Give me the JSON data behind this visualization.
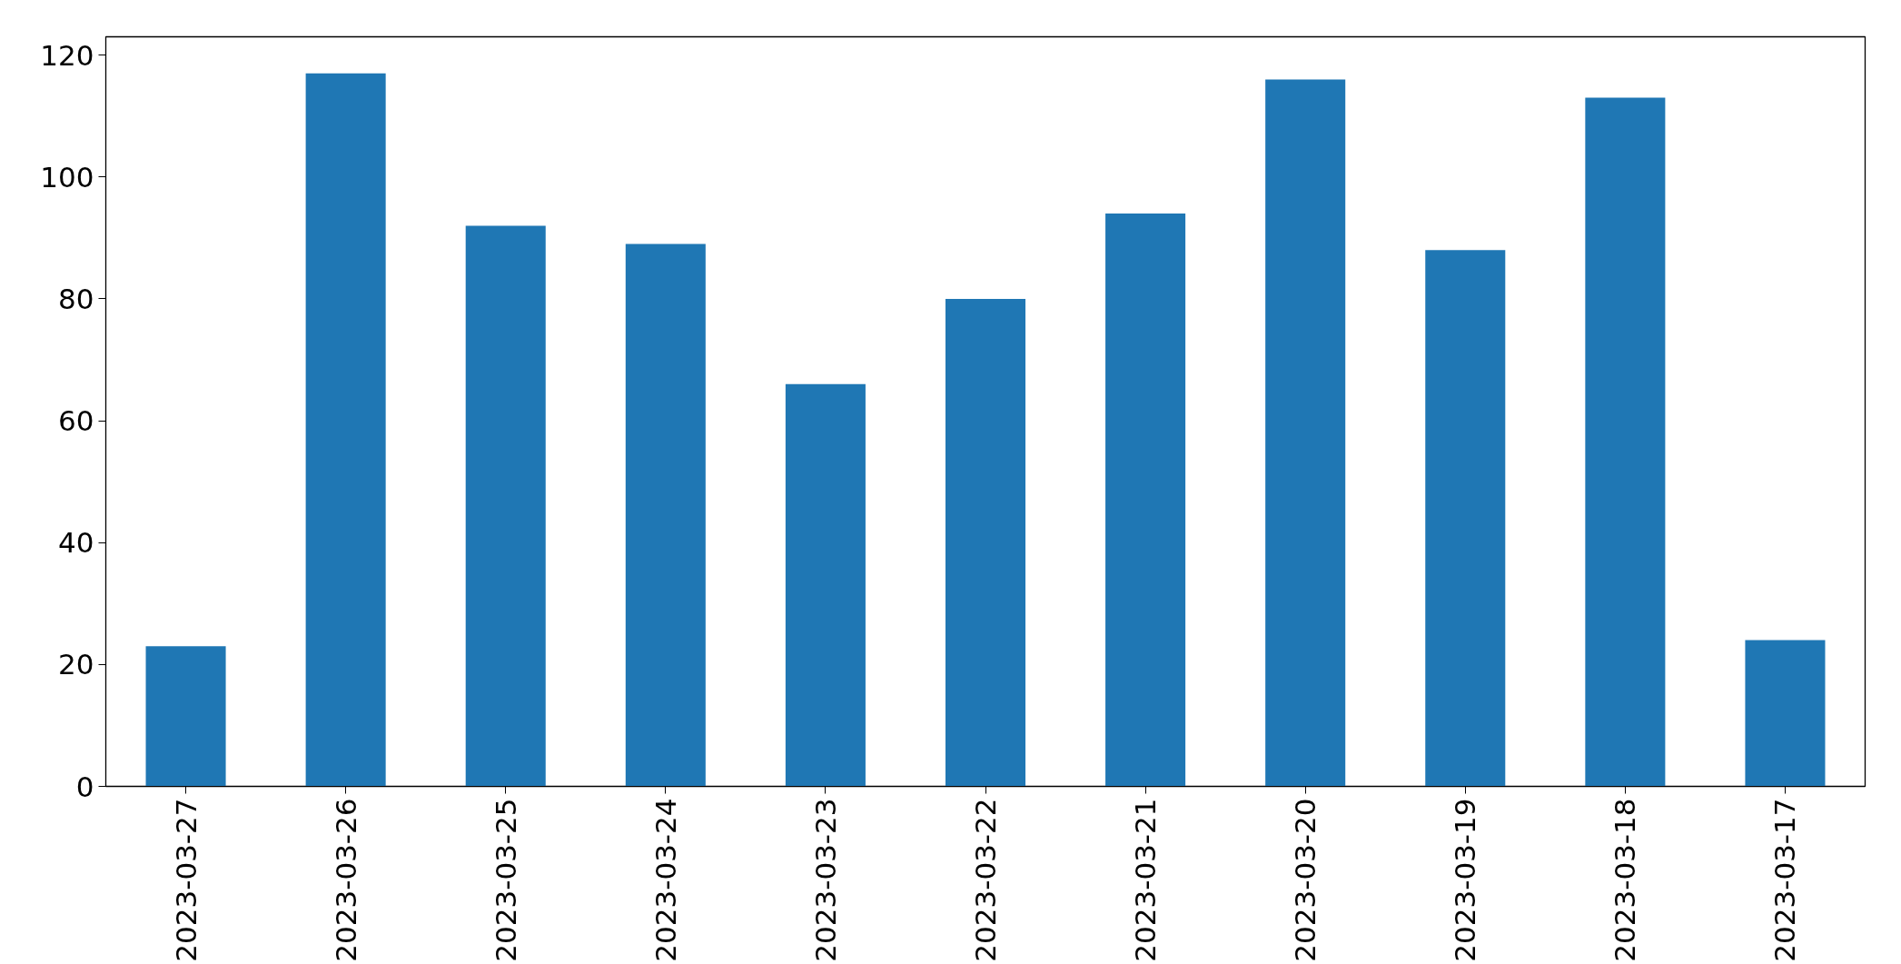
{
  "chart_data": {
    "type": "bar",
    "categories": [
      "2023-03-27",
      "2023-03-26",
      "2023-03-25",
      "2023-03-24",
      "2023-03-23",
      "2023-03-22",
      "2023-03-21",
      "2023-03-20",
      "2023-03-19",
      "2023-03-18",
      "2023-03-17"
    ],
    "values": [
      23,
      117,
      92,
      89,
      66,
      80,
      94,
      116,
      88,
      113,
      24
    ],
    "color": "#1f77b4",
    "ylim": [
      0,
      123
    ],
    "yticks": [
      0,
      20,
      40,
      60,
      80,
      100,
      120
    ]
  }
}
